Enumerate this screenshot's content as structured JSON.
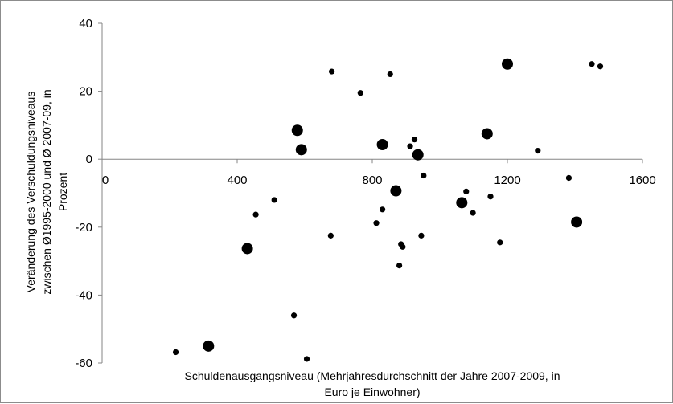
{
  "chart_data": {
    "type": "scatter",
    "title": "",
    "xlabel_lines": [
      "Schuldenausgangsniveau (Mehrjahresdurchschnitt der Jahre 2007-2009, in",
      "Euro je Einwohner)"
    ],
    "ylabel_lines": [
      "Veränderung des Verschuldungsniveaus",
      "zwischen Ø1995-2000 und Ø 2007-09, in",
      "Prozent"
    ],
    "xlim": [
      0,
      1600
    ],
    "ylim": [
      -60,
      40
    ],
    "x_ticks": [
      0,
      400,
      800,
      1200,
      1600
    ],
    "y_ticks": [
      40,
      20,
      0,
      -20,
      -40,
      -60
    ],
    "grid": false,
    "legend": "none",
    "marker_color": "#000000",
    "point_size_legend": "large markers vs small markers (no legend shown)",
    "points": [
      {
        "x": 218,
        "y": -56.8,
        "size": "small"
      },
      {
        "x": 315,
        "y": -55.0,
        "size": "large"
      },
      {
        "x": 430,
        "y": -26.3,
        "size": "large"
      },
      {
        "x": 455,
        "y": -16.3,
        "size": "small"
      },
      {
        "x": 510,
        "y": -12.0,
        "size": "small"
      },
      {
        "x": 568,
        "y": -46.0,
        "size": "small"
      },
      {
        "x": 578,
        "y": 8.5,
        "size": "large"
      },
      {
        "x": 590,
        "y": 2.8,
        "size": "large"
      },
      {
        "x": 606,
        "y": -58.8,
        "size": "small"
      },
      {
        "x": 677,
        "y": -22.5,
        "size": "small"
      },
      {
        "x": 680,
        "y": 25.8,
        "size": "small"
      },
      {
        "x": 765,
        "y": 19.5,
        "size": "small"
      },
      {
        "x": 812,
        "y": -18.8,
        "size": "small"
      },
      {
        "x": 830,
        "y": 4.3,
        "size": "large"
      },
      {
        "x": 830,
        "y": -14.8,
        "size": "small"
      },
      {
        "x": 853,
        "y": 25.0,
        "size": "small"
      },
      {
        "x": 870,
        "y": -9.3,
        "size": "large"
      },
      {
        "x": 880,
        "y": -31.3,
        "size": "small"
      },
      {
        "x": 885,
        "y": -25.0,
        "size": "small"
      },
      {
        "x": 890,
        "y": -25.8,
        "size": "small"
      },
      {
        "x": 912,
        "y": 3.8,
        "size": "small"
      },
      {
        "x": 925,
        "y": 5.8,
        "size": "small"
      },
      {
        "x": 935,
        "y": 1.3,
        "size": "large"
      },
      {
        "x": 945,
        "y": -22.5,
        "size": "small"
      },
      {
        "x": 952,
        "y": -4.8,
        "size": "small"
      },
      {
        "x": 1065,
        "y": -12.8,
        "size": "large"
      },
      {
        "x": 1078,
        "y": -9.5,
        "size": "small"
      },
      {
        "x": 1098,
        "y": -15.8,
        "size": "small"
      },
      {
        "x": 1140,
        "y": 7.5,
        "size": "large"
      },
      {
        "x": 1150,
        "y": -11.0,
        "size": "small"
      },
      {
        "x": 1178,
        "y": -24.5,
        "size": "small"
      },
      {
        "x": 1200,
        "y": 28.0,
        "size": "large"
      },
      {
        "x": 1290,
        "y": 2.5,
        "size": "small"
      },
      {
        "x": 1382,
        "y": -5.5,
        "size": "small"
      },
      {
        "x": 1405,
        "y": -18.5,
        "size": "large"
      },
      {
        "x": 1450,
        "y": 28.0,
        "size": "small"
      },
      {
        "x": 1475,
        "y": 27.3,
        "size": "small"
      }
    ]
  }
}
